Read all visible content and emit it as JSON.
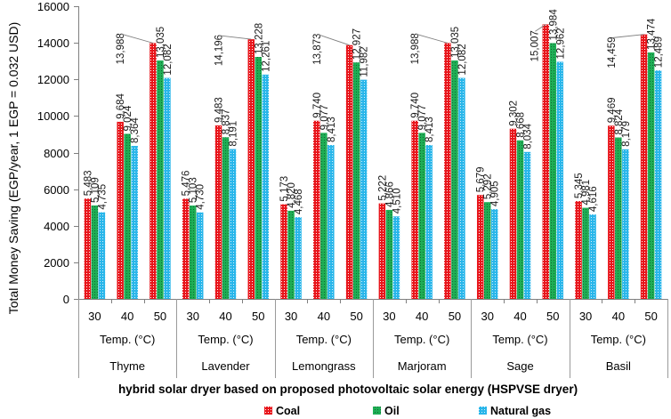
{
  "chart_data": {
    "type": "bar",
    "title": "",
    "ylabel": "Total Money Saving (EGP/year, 1 EGP = 0.032 USD)",
    "xlabel": "hybrid solar dryer based on proposed photovoltaic solar energy (HSPVSE dryer)",
    "ylim": [
      0,
      16000
    ],
    "yticks": [
      0,
      2000,
      4000,
      6000,
      8000,
      10000,
      12000,
      14000,
      16000
    ],
    "grid": false,
    "legend_position": "bottom",
    "groups": [
      {
        "name": "Thyme",
        "axis_label": "Temp. (°C)",
        "categories": [
          "30",
          "40",
          "50"
        ]
      },
      {
        "name": "Lavender",
        "axis_label": "Temp. (°C)",
        "categories": [
          "30",
          "40",
          "50"
        ]
      },
      {
        "name": "Lemongrass",
        "axis_label": "Temp. (°C)",
        "categories": [
          "30",
          "40",
          "50"
        ]
      },
      {
        "name": "Marjoram",
        "axis_label": "Temp. (°C)",
        "categories": [
          "30",
          "40",
          "50"
        ]
      },
      {
        "name": "Sage",
        "axis_label": "Temp. (°C)",
        "categories": [
          "30",
          "40",
          "50"
        ]
      },
      {
        "name": "Basil",
        "axis_label": "Temp. (°C)",
        "categories": [
          "30",
          "40",
          "50"
        ]
      }
    ],
    "series": [
      {
        "name": "Coal",
        "color": "#e8161c",
        "pattern_color": "#ffffff",
        "values": [
          5483,
          9684,
          13988,
          5476,
          9483,
          14196,
          5173,
          9740,
          13873,
          5222,
          9740,
          13988,
          5679,
          9302,
          15007,
          5345,
          9469,
          14459
        ]
      },
      {
        "name": "Oil",
        "color": "#1fae55",
        "pattern_color": "#0d6b31",
        "values": [
          5109,
          9024,
          13035,
          5103,
          8837,
          13228,
          4820,
          9077,
          12927,
          4866,
          9077,
          13035,
          5292,
          8668,
          13984,
          4981,
          8824,
          13474
        ]
      },
      {
        "name": "Natural gas",
        "color": "#29b6ea",
        "pattern_color": "#d6f1fb",
        "values": [
          4735,
          8364,
          12082,
          4730,
          8191,
          12261,
          4468,
          8413,
          11982,
          4510,
          8413,
          12082,
          4905,
          8034,
          12962,
          4616,
          8179,
          12489
        ]
      }
    ]
  }
}
